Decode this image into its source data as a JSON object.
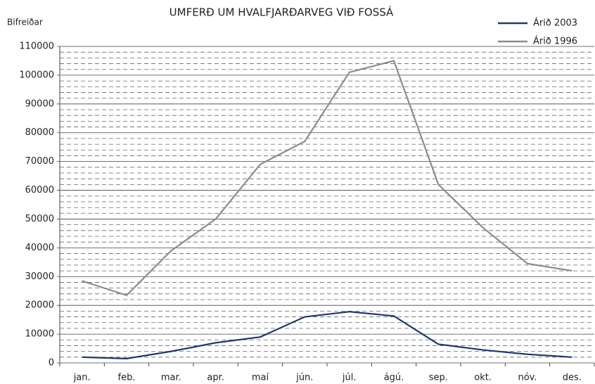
{
  "chart_data": {
    "type": "line",
    "title": "UMFERÐ UM HVALFJARÐARVEG VIÐ FOSSÁ",
    "y_label": "Bifreiðar",
    "categories": [
      "jan.",
      "feb.",
      "mar.",
      "apr.",
      "maí",
      "jún.",
      "júl.",
      "ágú.",
      "sep.",
      "okt.",
      "nóv.",
      "des."
    ],
    "series": [
      {
        "name": "Árið 2003",
        "color": "#1f3a68",
        "values": [
          2000,
          1500,
          4000,
          7000,
          9000,
          16000,
          17800,
          16300,
          6500,
          4500,
          3000,
          2000
        ]
      },
      {
        "name": "Árið 1996",
        "color": "#8c8c8c",
        "values": [
          28500,
          23500,
          39000,
          50000,
          69000,
          77000,
          101000,
          105000,
          62000,
          47000,
          34500,
          32000
        ]
      }
    ],
    "ylim": [
      0,
      110000
    ],
    "yticks": [
      0,
      10000,
      20000,
      30000,
      40000,
      50000,
      60000,
      70000,
      80000,
      90000,
      100000,
      110000
    ],
    "grid": true,
    "minor_grid_interval": 2000,
    "legend": "top-right"
  }
}
